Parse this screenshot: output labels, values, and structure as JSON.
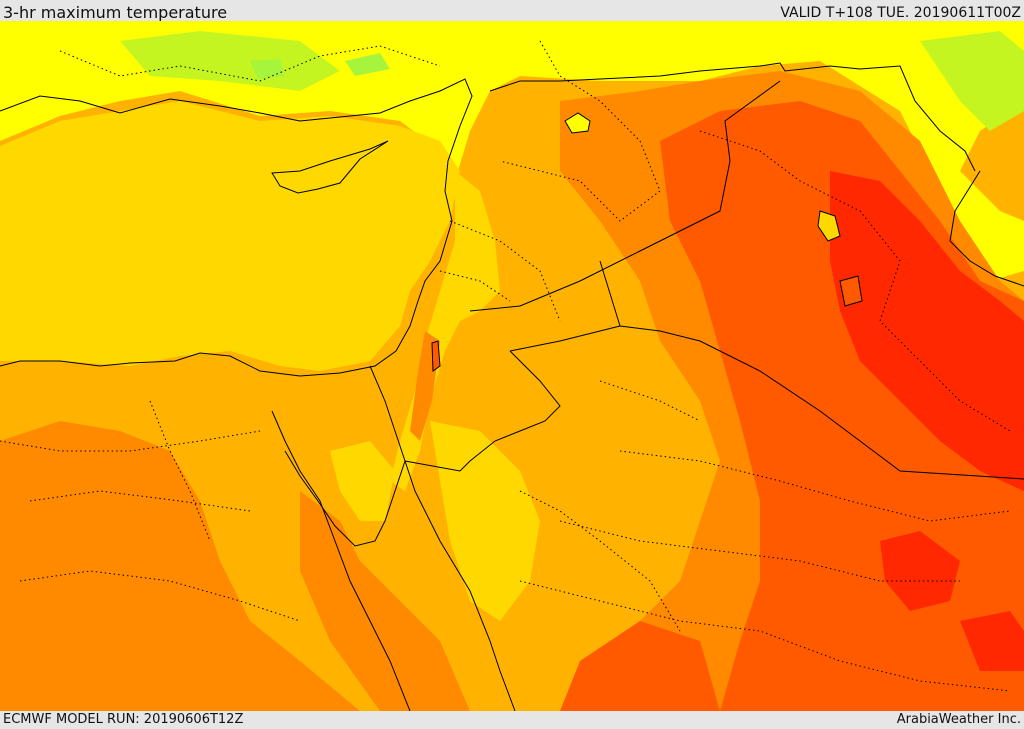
{
  "header": {
    "title": "3-hr maximum temperature",
    "valid": "VALID T+108 TUE. 20190611T00Z"
  },
  "footer": {
    "model_run": "ECMWF MODEL RUN: 20190606T12Z",
    "credit": "ArabiaWeather Inc."
  },
  "map": {
    "field_colors": {
      "green": "#a6f53c",
      "yellow_green": "#e7f60a",
      "yellow": "#ffff00",
      "gold": "#ffd800",
      "amber": "#ffb300",
      "orange": "#ff8a00",
      "red_orange": "#ff5a00",
      "red": "#ff2800"
    },
    "line_color": "#000000"
  }
}
